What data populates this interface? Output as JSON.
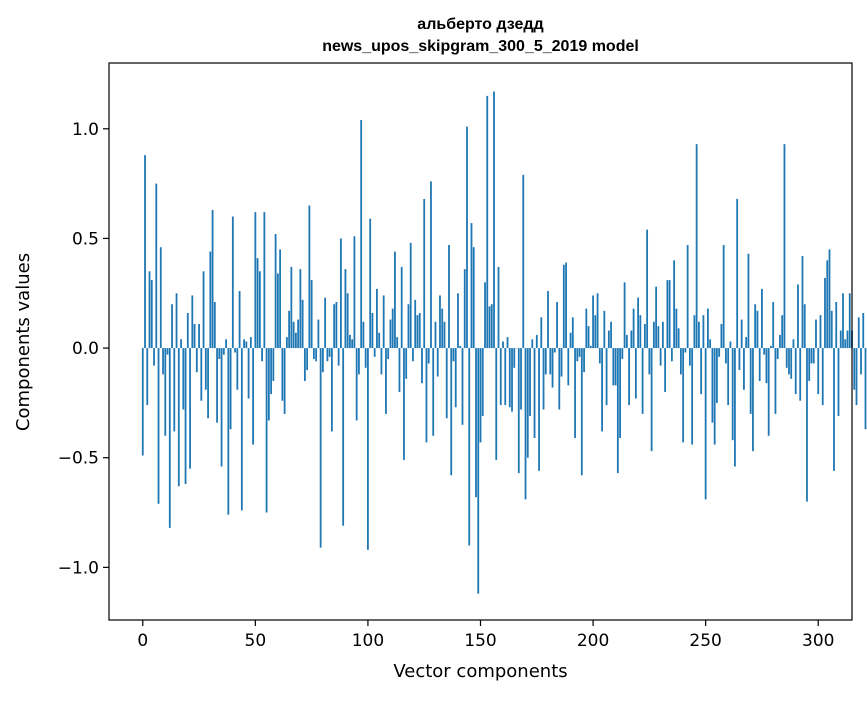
{
  "chart_data": {
    "type": "bar",
    "title_line1": "альберто дзедд",
    "title_line2": "news_upos_skipgram_300_5_2019 model",
    "xlabel": "Vector components",
    "ylabel": "Components values",
    "xlim": [
      -15,
      315
    ],
    "ylim": [
      -1.24,
      1.3
    ],
    "xticks": [
      0,
      50,
      100,
      150,
      200,
      250,
      300
    ],
    "xtick_labels": [
      "0",
      "50",
      "100",
      "150",
      "200",
      "250",
      "300"
    ],
    "yticks": [
      1.0,
      0.5,
      0.0,
      -0.5,
      -1.0
    ],
    "ytick_labels": [
      "1.0",
      "0.5",
      "0.0",
      "−0.5",
      "−1.0"
    ],
    "bar_color": "#1f77b4",
    "grid": false,
    "values": [
      -0.49,
      0.88,
      -0.26,
      0.35,
      0.31,
      -0.08,
      0.75,
      -0.71,
      0.46,
      -0.12,
      -0.4,
      -0.03,
      -0.82,
      0.2,
      -0.38,
      0.25,
      -0.63,
      0.04,
      -0.28,
      -0.62,
      0.16,
      -0.55,
      0.24,
      0.11,
      -0.11,
      0.11,
      -0.24,
      0.35,
      -0.19,
      -0.32,
      0.44,
      0.63,
      0.21,
      -0.34,
      -0.05,
      -0.54,
      -0.03,
      0.04,
      -0.76,
      -0.37,
      0.6,
      -0.02,
      -0.19,
      0.26,
      -0.74,
      0.04,
      0.03,
      -0.23,
      0.05,
      -0.44,
      0.62,
      0.41,
      0.35,
      -0.06,
      0.62,
      -0.75,
      -0.33,
      -0.21,
      -0.15,
      0.52,
      0.34,
      0.45,
      -0.24,
      -0.3,
      0.05,
      0.17,
      0.37,
      0.12,
      0.07,
      0.13,
      0.36,
      0.22,
      -0.15,
      -0.1,
      0.65,
      0.31,
      -0.05,
      -0.06,
      0.13,
      -0.91,
      -0.11,
      0.23,
      -0.06,
      -0.04,
      -0.38,
      0.2,
      0.21,
      -0.08,
      0.5,
      -0.81,
      0.36,
      0.25,
      0.06,
      0.04,
      0.51,
      -0.33,
      -0.12,
      1.04,
      0.12,
      -0.09,
      -0.92,
      0.59,
      0.16,
      -0.04,
      0.27,
      0.07,
      -0.12,
      0.24,
      -0.3,
      -0.05,
      0.13,
      0.18,
      0.44,
      0.05,
      -0.2,
      0.37,
      -0.51,
      -0.14,
      0.2,
      0.48,
      -0.06,
      0.22,
      0.15,
      0.16,
      -0.16,
      0.68,
      -0.43,
      -0.07,
      0.76,
      -0.4,
      0.12,
      -0.13,
      0.24,
      0.18,
      0.12,
      -0.32,
      0.47,
      -0.58,
      -0.06,
      -0.27,
      0.25,
      0.01,
      -0.35,
      0.36,
      1.01,
      -0.9,
      0.57,
      0.46,
      -0.68,
      -1.12,
      -0.43,
      -0.31,
      0.3,
      1.15,
      0.19,
      0.2,
      1.17,
      -0.51,
      0.37,
      -0.26,
      0.03,
      -0.26,
      0.05,
      -0.27,
      -0.29,
      -0.09,
      0.0,
      -0.57,
      -0.28,
      0.79,
      -0.69,
      -0.5,
      -0.31,
      0.04,
      -0.41,
      0.06,
      -0.56,
      0.14,
      -0.28,
      -0.12,
      0.26,
      -0.12,
      -0.18,
      -0.02,
      0.21,
      -0.28,
      -0.13,
      0.38,
      0.39,
      -0.17,
      0.07,
      0.14,
      -0.41,
      -0.06,
      -0.04,
      -0.58,
      -0.11,
      0.18,
      0.1,
      0.01,
      0.24,
      0.15,
      0.25,
      -0.07,
      -0.38,
      0.17,
      -0.26,
      0.08,
      0.12,
      -0.17,
      -0.17,
      -0.57,
      -0.41,
      -0.05,
      0.3,
      0.06,
      -0.26,
      0.08,
      0.18,
      -0.23,
      0.23,
      0.15,
      -0.3,
      0.11,
      0.54,
      -0.12,
      -0.47,
      0.12,
      0.28,
      0.1,
      -0.08,
      0.12,
      -0.2,
      0.31,
      0.31,
      -0.06,
      0.4,
      0.18,
      0.09,
      -0.12,
      -0.43,
      -0.02,
      0.47,
      -0.08,
      -0.44,
      0.15,
      0.93,
      0.12,
      -0.21,
      0.15,
      -0.69,
      0.18,
      0.04,
      -0.34,
      -0.44,
      -0.25,
      -0.04,
      0.11,
      0.47,
      -0.07,
      -0.26,
      0.03,
      -0.42,
      -0.54,
      0.68,
      -0.1,
      0.13,
      -0.19,
      0.05,
      0.43,
      -0.3,
      -0.47,
      0.2,
      0.17,
      -0.15,
      0.27,
      -0.03,
      -0.16,
      -0.4,
      0.01,
      0.21,
      -0.3,
      -0.05,
      0.06,
      0.15,
      0.93,
      -0.09,
      -0.12,
      -0.14,
      0.04,
      -0.21,
      0.29,
      -0.24,
      0.42,
      0.2,
      -0.7,
      -0.15,
      -0.07,
      -0.07,
      0.13,
      -0.21,
      0.15,
      -0.26,
      0.32,
      0.4,
      0.45,
      0.17,
      -0.56,
      0.21,
      -0.31,
      0.08,
      0.25,
      0.04,
      0.08,
      0.25,
      0.08,
      -0.19,
      -0.26,
      0.14,
      -0.12,
      0.16,
      -0.37
    ]
  }
}
